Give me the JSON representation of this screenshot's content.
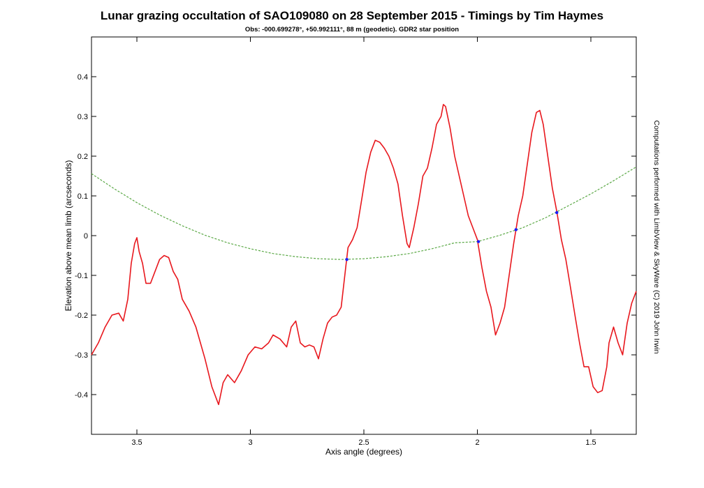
{
  "chart_data": {
    "type": "line",
    "title": "Lunar grazing occultation of SAO109080 on 28 September 2015 - Timings by Tim Haymes",
    "subtitle": "Obs: -000.699278°, +50.992111°, 88 m (geodetic). GDR2 star position",
    "xlabel": "Axis angle (degrees)",
    "ylabel": "Elevation above mean limb (arcseconds)",
    "side_note": "Computations performed with LimbView & SkyWare (C) 2019 John Irwin",
    "xlim": [
      3.7,
      1.3
    ],
    "ylim": [
      -0.5,
      0.5
    ],
    "x_reversed": true,
    "grid": false,
    "x_ticks": [
      {
        "value": 3.5,
        "label": "3.5"
      },
      {
        "value": 3,
        "label": "3"
      },
      {
        "value": 2.5,
        "label": "2.5"
      },
      {
        "value": 2,
        "label": "2"
      },
      {
        "value": 1.5,
        "label": "1.5"
      }
    ],
    "y_ticks": [
      {
        "value": 0.4,
        "label": "0.4"
      },
      {
        "value": 0.3,
        "label": "0.3"
      },
      {
        "value": 0.2,
        "label": "0.2"
      },
      {
        "value": 0.1,
        "label": "0.1"
      },
      {
        "value": 0,
        "label": "0"
      },
      {
        "value": -0.1,
        "label": "-0.1"
      },
      {
        "value": -0.2,
        "label": "-0.2"
      },
      {
        "value": -0.3,
        "label": "-0.3"
      },
      {
        "value": -0.4,
        "label": "-0.4"
      }
    ],
    "series": [
      {
        "color": "#e8171d",
        "style": "solid",
        "points": [
          [
            3.7,
            -0.3
          ],
          [
            3.67,
            -0.27
          ],
          [
            3.64,
            -0.23
          ],
          [
            3.61,
            -0.2
          ],
          [
            3.58,
            -0.195
          ],
          [
            3.56,
            -0.215
          ],
          [
            3.54,
            -0.16
          ],
          [
            3.525,
            -0.07
          ],
          [
            3.51,
            -0.02
          ],
          [
            3.5,
            -0.005
          ],
          [
            3.49,
            -0.04
          ],
          [
            3.475,
            -0.07
          ],
          [
            3.46,
            -0.12
          ],
          [
            3.44,
            -0.12
          ],
          [
            3.42,
            -0.09
          ],
          [
            3.4,
            -0.06
          ],
          [
            3.38,
            -0.05
          ],
          [
            3.36,
            -0.055
          ],
          [
            3.34,
            -0.09
          ],
          [
            3.32,
            -0.11
          ],
          [
            3.3,
            -0.16
          ],
          [
            3.27,
            -0.19
          ],
          [
            3.24,
            -0.23
          ],
          [
            3.2,
            -0.31
          ],
          [
            3.17,
            -0.38
          ],
          [
            3.14,
            -0.425
          ],
          [
            3.12,
            -0.37
          ],
          [
            3.1,
            -0.35
          ],
          [
            3.07,
            -0.37
          ],
          [
            3.04,
            -0.34
          ],
          [
            3.01,
            -0.3
          ],
          [
            2.98,
            -0.28
          ],
          [
            2.95,
            -0.285
          ],
          [
            2.92,
            -0.27
          ],
          [
            2.9,
            -0.25
          ],
          [
            2.87,
            -0.26
          ],
          [
            2.84,
            -0.28
          ],
          [
            2.82,
            -0.23
          ],
          [
            2.8,
            -0.215
          ],
          [
            2.78,
            -0.27
          ],
          [
            2.76,
            -0.28
          ],
          [
            2.74,
            -0.275
          ],
          [
            2.72,
            -0.28
          ],
          [
            2.7,
            -0.31
          ],
          [
            2.68,
            -0.26
          ],
          [
            2.66,
            -0.22
          ],
          [
            2.64,
            -0.205
          ],
          [
            2.62,
            -0.2
          ],
          [
            2.6,
            -0.18
          ],
          [
            2.58,
            -0.08
          ],
          [
            2.57,
            -0.03
          ],
          [
            2.55,
            -0.01
          ],
          [
            2.53,
            0.02
          ],
          [
            2.51,
            0.09
          ],
          [
            2.49,
            0.16
          ],
          [
            2.47,
            0.21
          ],
          [
            2.45,
            0.24
          ],
          [
            2.43,
            0.235
          ],
          [
            2.41,
            0.22
          ],
          [
            2.39,
            0.2
          ],
          [
            2.37,
            0.17
          ],
          [
            2.35,
            0.13
          ],
          [
            2.33,
            0.05
          ],
          [
            2.31,
            -0.02
          ],
          [
            2.3,
            -0.03
          ],
          [
            2.28,
            0.02
          ],
          [
            2.26,
            0.08
          ],
          [
            2.24,
            0.15
          ],
          [
            2.22,
            0.17
          ],
          [
            2.2,
            0.22
          ],
          [
            2.18,
            0.28
          ],
          [
            2.16,
            0.3
          ],
          [
            2.15,
            0.33
          ],
          [
            2.14,
            0.325
          ],
          [
            2.12,
            0.27
          ],
          [
            2.1,
            0.2
          ],
          [
            2.08,
            0.15
          ],
          [
            2.06,
            0.1
          ],
          [
            2.04,
            0.05
          ],
          [
            2.02,
            0.02
          ],
          [
            2.0,
            -0.01
          ],
          [
            1.98,
            -0.08
          ],
          [
            1.96,
            -0.14
          ],
          [
            1.94,
            -0.18
          ],
          [
            1.92,
            -0.25
          ],
          [
            1.9,
            -0.22
          ],
          [
            1.88,
            -0.18
          ],
          [
            1.86,
            -0.1
          ],
          [
            1.84,
            -0.02
          ],
          [
            1.82,
            0.05
          ],
          [
            1.8,
            0.1
          ],
          [
            1.78,
            0.18
          ],
          [
            1.76,
            0.26
          ],
          [
            1.74,
            0.31
          ],
          [
            1.725,
            0.315
          ],
          [
            1.71,
            0.28
          ],
          [
            1.69,
            0.2
          ],
          [
            1.67,
            0.12
          ],
          [
            1.65,
            0.06
          ],
          [
            1.63,
            -0.01
          ],
          [
            1.61,
            -0.06
          ],
          [
            1.59,
            -0.13
          ],
          [
            1.57,
            -0.2
          ],
          [
            1.55,
            -0.27
          ],
          [
            1.53,
            -0.33
          ],
          [
            1.51,
            -0.33
          ],
          [
            1.49,
            -0.38
          ],
          [
            1.47,
            -0.395
          ],
          [
            1.45,
            -0.39
          ],
          [
            1.43,
            -0.33
          ],
          [
            1.42,
            -0.27
          ],
          [
            1.4,
            -0.23
          ],
          [
            1.38,
            -0.27
          ],
          [
            1.36,
            -0.3
          ],
          [
            1.34,
            -0.22
          ],
          [
            1.32,
            -0.17
          ],
          [
            1.3,
            -0.14
          ]
        ]
      },
      {
        "color": "#5aa845",
        "style": "dashed",
        "points": [
          [
            3.7,
            0.156
          ],
          [
            3.6,
            0.118
          ],
          [
            3.5,
            0.083
          ],
          [
            3.4,
            0.052
          ],
          [
            3.3,
            0.025
          ],
          [
            3.2,
            0.001
          ],
          [
            3.1,
            -0.018
          ],
          [
            3.0,
            -0.033
          ],
          [
            2.9,
            -0.045
          ],
          [
            2.8,
            -0.053
          ],
          [
            2.7,
            -0.058
          ],
          [
            2.6,
            -0.06
          ],
          [
            2.5,
            -0.058
          ],
          [
            2.4,
            -0.053
          ],
          [
            2.3,
            -0.045
          ],
          [
            2.2,
            -0.033
          ],
          [
            2.1,
            -0.018
          ],
          [
            2.0,
            -0.015
          ],
          [
            1.9,
            0.001
          ],
          [
            1.8,
            0.02
          ],
          [
            1.7,
            0.045
          ],
          [
            1.6,
            0.075
          ],
          [
            1.5,
            0.105
          ],
          [
            1.4,
            0.138
          ],
          [
            1.3,
            0.173
          ]
        ]
      }
    ],
    "markers": {
      "color": "#1a1aff",
      "points": [
        [
          2.575,
          -0.06
        ],
        [
          1.995,
          -0.015
        ],
        [
          1.83,
          0.015
        ],
        [
          1.65,
          0.058
        ]
      ]
    }
  }
}
